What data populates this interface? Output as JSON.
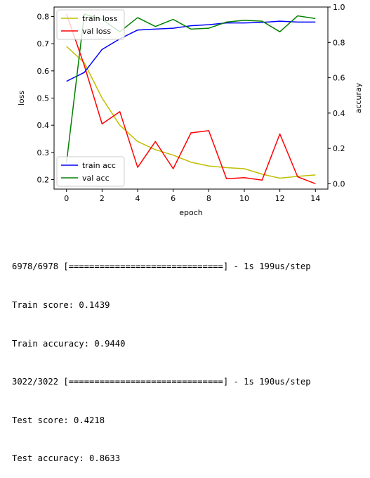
{
  "chart_data": {
    "type": "line",
    "xlabel": "epoch",
    "ylabel": "loss",
    "ylabel_right": "accuray",
    "xlim": [
      -0.7,
      14.7
    ],
    "ylim": [
      0.165,
      0.835
    ],
    "ylim_right": [
      -0.03,
      1.0
    ],
    "xticks": [
      0,
      2,
      4,
      6,
      8,
      10,
      12,
      14
    ],
    "yticks": [
      0.2,
      0.3,
      0.4,
      0.5,
      0.6,
      0.7,
      0.8
    ],
    "yticks_right": [
      0.0,
      0.2,
      0.4,
      0.6,
      0.8,
      1.0
    ],
    "grid": false,
    "x": [
      0,
      1,
      2,
      3,
      4,
      5,
      6,
      7,
      8,
      9,
      10,
      11,
      12,
      13,
      14
    ],
    "series": [
      {
        "name": "train loss",
        "axis": "left",
        "color": "#bfbf00",
        "values": [
          0.69,
          0.63,
          0.5,
          0.4,
          0.34,
          0.31,
          0.29,
          0.264,
          0.25,
          0.244,
          0.24,
          0.22,
          0.205,
          0.212,
          0.217
        ]
      },
      {
        "name": "val loss",
        "axis": "left",
        "color": "#ff0000",
        "values": [
          0.81,
          0.62,
          0.405,
          0.45,
          0.245,
          0.34,
          0.24,
          0.372,
          0.38,
          0.203,
          0.207,
          0.198,
          0.368,
          0.21,
          0.185
        ]
      },
      {
        "name": "train acc",
        "axis": "right",
        "color": "#0000ff",
        "values": [
          0.58,
          0.63,
          0.76,
          0.82,
          0.87,
          0.875,
          0.88,
          0.894,
          0.9,
          0.91,
          0.91,
          0.913,
          0.92,
          0.915,
          0.915
        ]
      },
      {
        "name": "val acc",
        "axis": "right",
        "color": "#008000",
        "values": [
          0.12,
          0.96,
          0.93,
          0.86,
          0.94,
          0.89,
          0.93,
          0.875,
          0.88,
          0.915,
          0.925,
          0.92,
          0.86,
          0.95,
          0.935
        ]
      }
    ],
    "legends": [
      {
        "position": "upper-left",
        "entries": [
          "train loss",
          "val loss"
        ]
      },
      {
        "position": "lower-left",
        "entries": [
          "train acc",
          "val acc"
        ]
      }
    ]
  },
  "console": {
    "lines": [
      "6978/6978 [==============================] - 1s 199us/step",
      "Train score: 0.1439",
      "Train accuracy: 0.9440",
      "3022/3022 [==============================] - 1s 190us/step",
      "Test score: 0.4218",
      "Test accuracy: 0.8633"
    ]
  }
}
